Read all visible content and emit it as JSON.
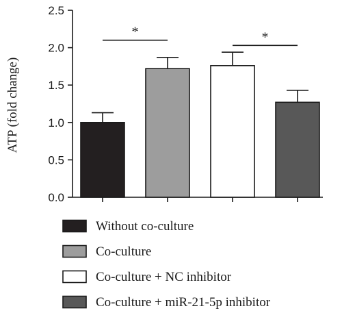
{
  "chart_data": {
    "type": "bar",
    "ylabel": "ATP (fold change)",
    "ylim": [
      0,
      2.5
    ],
    "yticks": [
      "0.0",
      "0.5",
      "1.0",
      "1.5",
      "2.0",
      "2.5"
    ],
    "grid": false,
    "legend_position": "bottom",
    "categories": [
      "Without co-culture",
      "Co-culture",
      "Co-culture + NC inhibitor",
      "Co-culture + miR-21-5p inhibitor"
    ],
    "values": [
      1.0,
      1.72,
      1.76,
      1.27
    ],
    "errors": [
      0.13,
      0.15,
      0.18,
      0.16
    ],
    "colors": [
      "#231f20",
      "#9d9d9d",
      "#ffffff",
      "#585858"
    ],
    "significance": [
      {
        "from": 0,
        "to": 1,
        "label": "*",
        "y": 2.1
      },
      {
        "from": 2,
        "to": 3,
        "label": "*",
        "y": 2.03
      }
    ]
  }
}
